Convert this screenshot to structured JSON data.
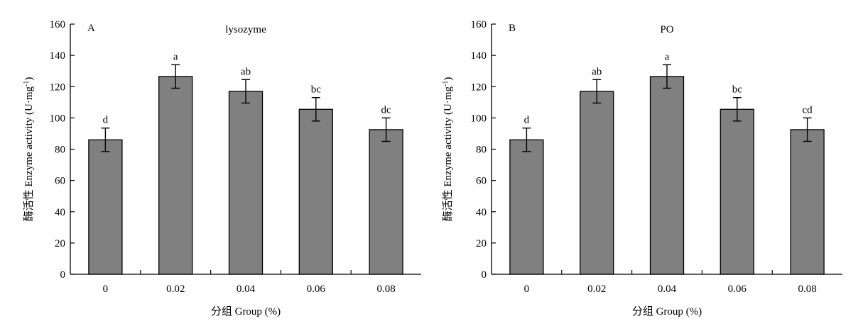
{
  "chart_data": [
    {
      "type": "bar",
      "panel_label": "A",
      "title": "lysozyme",
      "xlabel": "分组 Group (%)",
      "ylabel_prefix": "酶活性 Enzyme activity (U·mg",
      "ylabel_exponent": "-1",
      "ylabel_suffix": ")",
      "categories": [
        "0",
        "0.02",
        "0.04",
        "0.06",
        "0.08"
      ],
      "values": [
        86,
        126.5,
        117,
        105.5,
        92.5
      ],
      "errors": [
        7.5,
        7.5,
        7.5,
        7.5,
        7.5
      ],
      "significance_labels": [
        "d",
        "a",
        "ab",
        "bc",
        "dc"
      ],
      "ylim": [
        0,
        160
      ],
      "yticks": [
        0,
        20,
        40,
        60,
        80,
        100,
        120,
        140,
        160
      ],
      "bar_color": "#808080",
      "grid": false
    },
    {
      "type": "bar",
      "panel_label": "B",
      "title": "PO",
      "xlabel": "分组 Group (%)",
      "ylabel_prefix": "酶活性 Enzyme activity (U·mg",
      "ylabel_exponent": "-1",
      "ylabel_suffix": ")",
      "categories": [
        "0",
        "0.02",
        "0.04",
        "0.06",
        "0.08"
      ],
      "values": [
        86,
        117,
        126.5,
        105.5,
        92.5
      ],
      "errors": [
        7.5,
        7.5,
        7.5,
        7.5,
        7.5
      ],
      "significance_labels": [
        "d",
        "ab",
        "a",
        "bc",
        "cd"
      ],
      "ylim": [
        0,
        160
      ],
      "yticks": [
        0,
        20,
        40,
        60,
        80,
        100,
        120,
        140,
        160
      ],
      "bar_color": "#808080",
      "grid": false
    }
  ]
}
